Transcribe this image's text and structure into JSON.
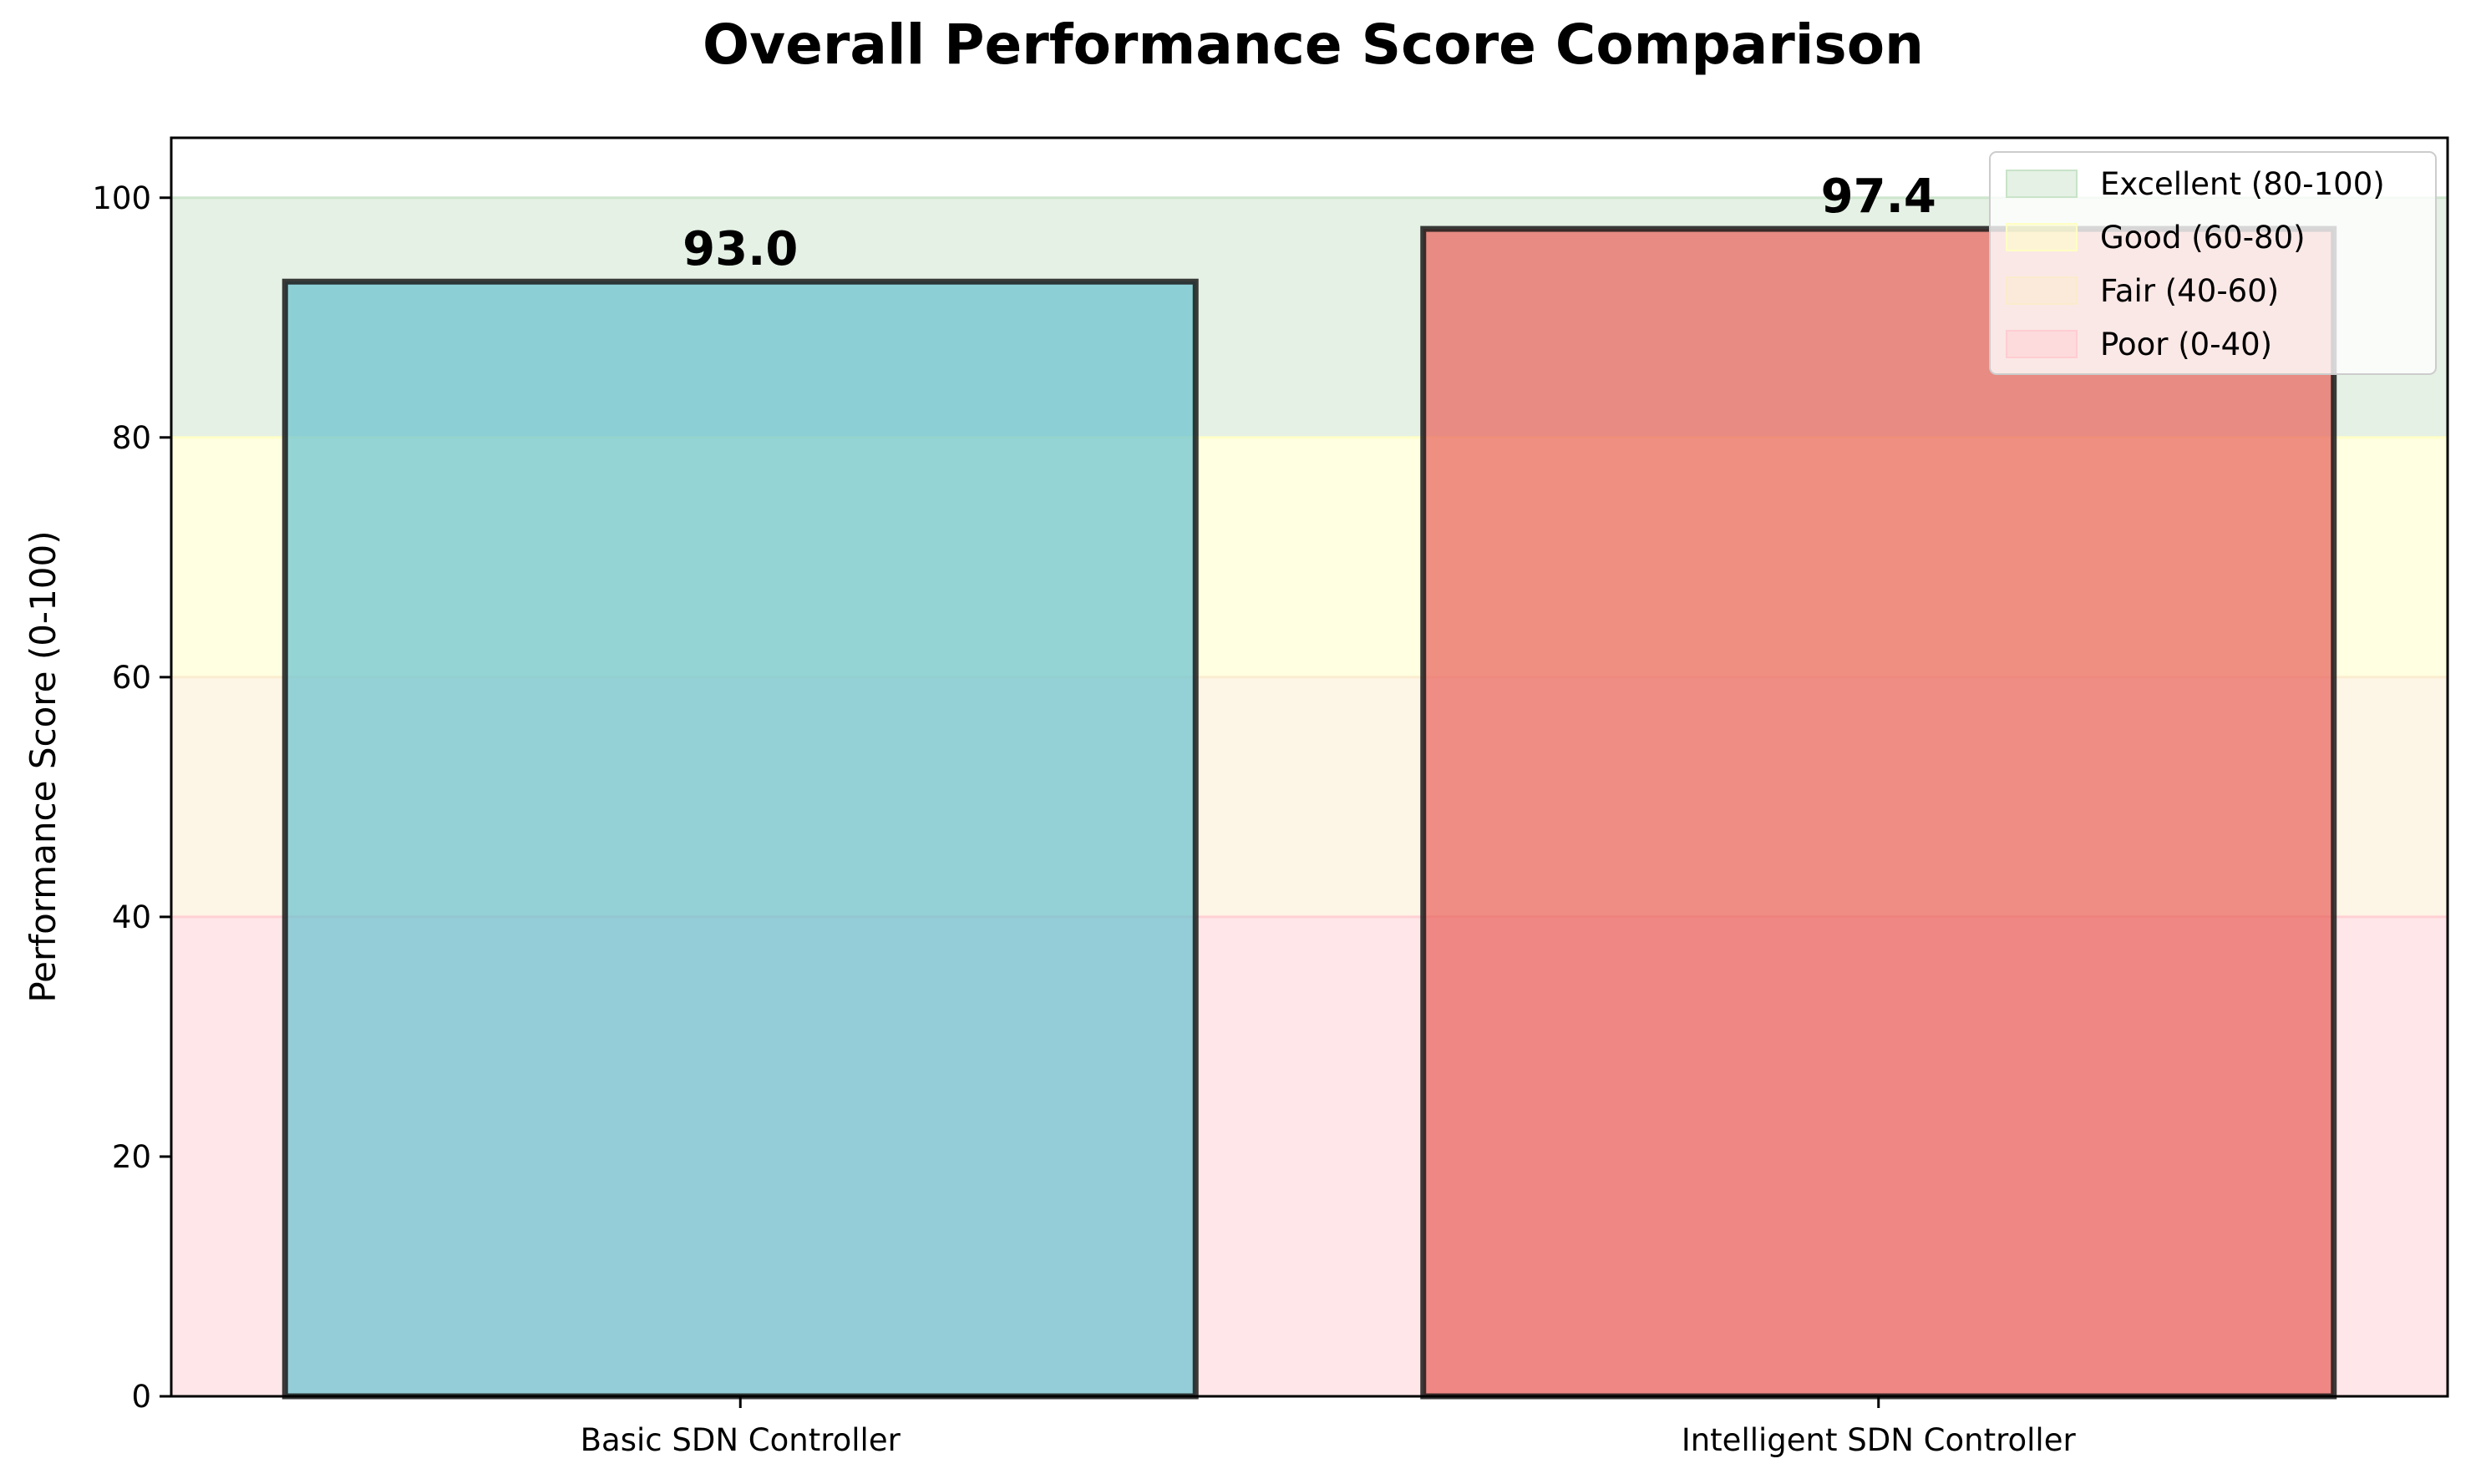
{
  "chart_data": {
    "type": "bar",
    "title": "Overall Performance Score Comparison",
    "xlabel": "",
    "ylabel": "Performance Score (0-100)",
    "ylim": [
      0,
      105
    ],
    "yticks": [
      0,
      20,
      40,
      60,
      80,
      100
    ],
    "categories": [
      "Basic SDN Controller",
      "Intelligent SDN Controller"
    ],
    "values": [
      93.0,
      97.4
    ],
    "value_labels": [
      "93.0",
      "97.4"
    ],
    "bar_colors": [
      "#66C2D0",
      "#E8605A"
    ],
    "bar_edge_color": "#1a1a1a",
    "bands": [
      {
        "label": "Excellent (80-100)",
        "from": 80,
        "to": 100,
        "color": "#C9E3C9"
      },
      {
        "label": "Good (60-80)",
        "from": 60,
        "to": 80,
        "color": "#FFFFC4"
      },
      {
        "label": "Fair (40-60)",
        "from": 40,
        "to": 60,
        "color": "#FBEBCD"
      },
      {
        "label": "Poor (0-40)",
        "from": 0,
        "to": 40,
        "color": "#FFCDD2"
      }
    ],
    "legend_position": "top-right",
    "grid": false
  }
}
